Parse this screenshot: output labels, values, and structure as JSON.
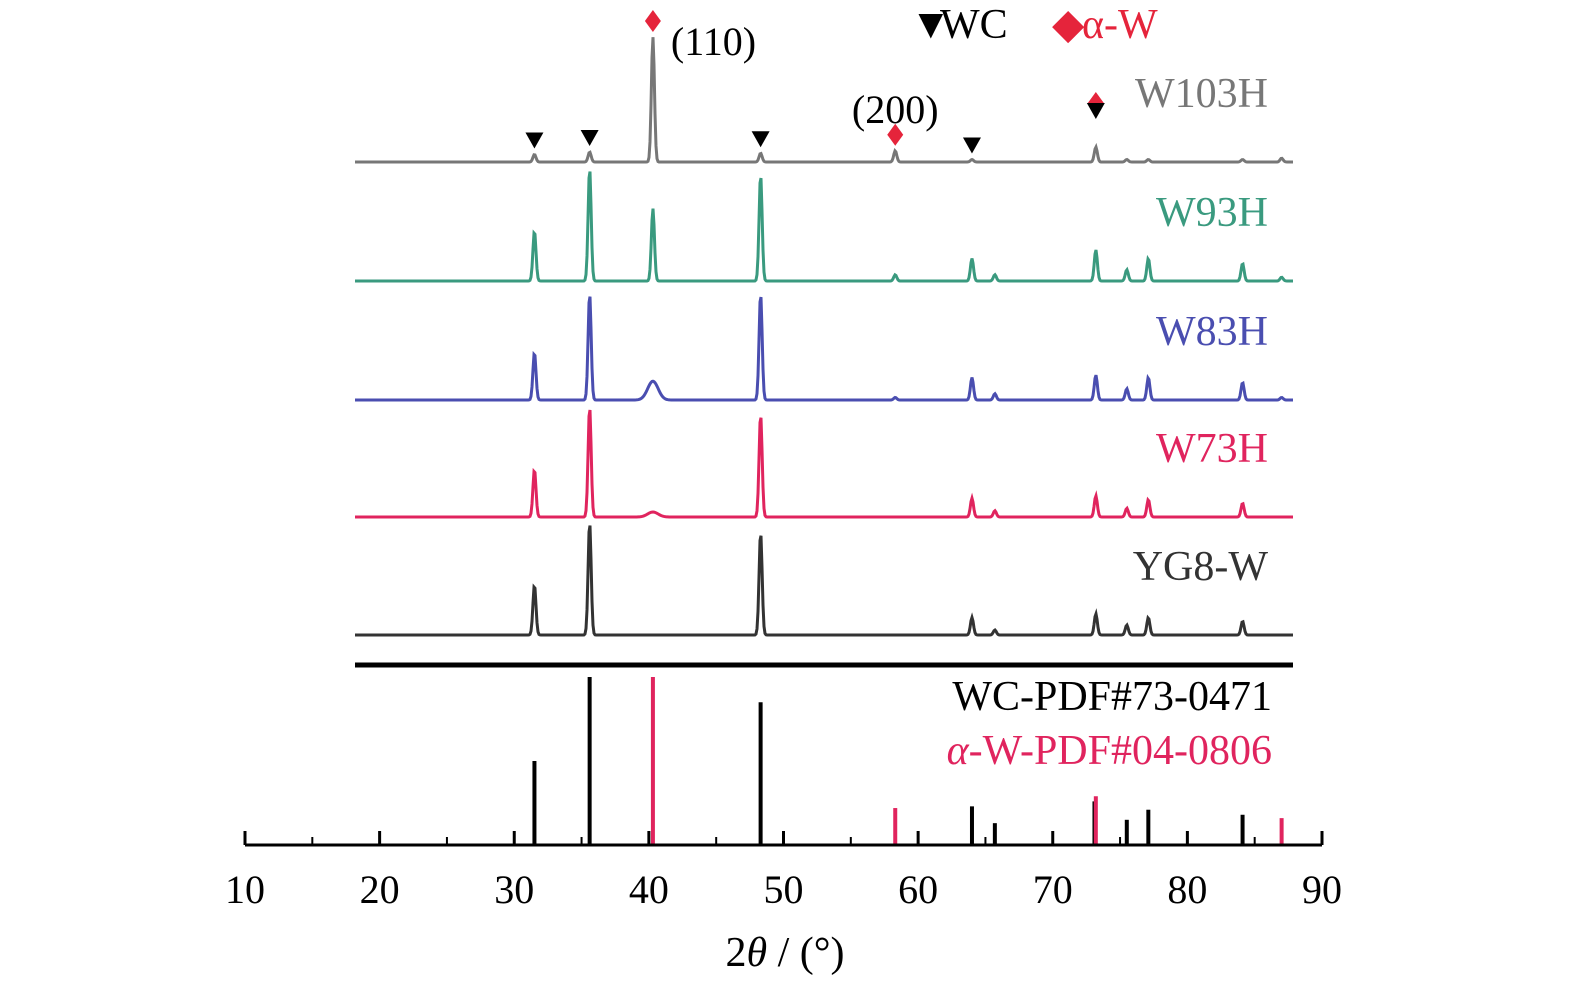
{
  "chart_data": {
    "type": "line",
    "title": "",
    "xlabel_parts": [
      "2",
      "θ",
      " / (°)"
    ],
    "ylabel": "",
    "xlim": [
      10,
      90
    ],
    "xticks": [
      10,
      20,
      30,
      40,
      50,
      60,
      70,
      80,
      90
    ],
    "grid": false,
    "legend": {
      "placement": "top-center",
      "items": [
        {
          "symbol": "▼",
          "label": "WC",
          "color": "#000000"
        },
        {
          "symbol": "◆",
          "label": "α-W",
          "color": "#e5243b"
        }
      ]
    },
    "series": [
      {
        "name": "W103H",
        "color": "#777777",
        "peaks": [
          {
            "x": 31.5,
            "rel": 0.06
          },
          {
            "x": 35.6,
            "rel": 0.08
          },
          {
            "x": 40.3,
            "rel": 1.0
          },
          {
            "x": 48.3,
            "rel": 0.07
          },
          {
            "x": 58.3,
            "rel": 0.09
          },
          {
            "x": 64.0,
            "rel": 0.02
          },
          {
            "x": 73.2,
            "rel": 0.12
          },
          {
            "x": 75.5,
            "rel": 0.02
          },
          {
            "x": 77.1,
            "rel": 0.02
          },
          {
            "x": 84.1,
            "rel": 0.02
          },
          {
            "x": 87.0,
            "rel": 0.03
          }
        ],
        "markers": [
          {
            "x": 31.5,
            "type": "WC"
          },
          {
            "x": 35.6,
            "type": "WC"
          },
          {
            "x": 40.3,
            "type": "W"
          },
          {
            "x": 48.3,
            "type": "WC"
          },
          {
            "x": 58.3,
            "type": "W"
          },
          {
            "x": 64.0,
            "type": "WC"
          },
          {
            "x": 73.2,
            "type": "W"
          },
          {
            "x": 73.2,
            "type": "WC"
          }
        ],
        "annotations": [
          {
            "text": "(110)",
            "x": 40.3
          },
          {
            "text": "(200)",
            "x": 58.3
          }
        ]
      },
      {
        "name": "W93H",
        "color": "#3a9a7f",
        "peaks": [
          {
            "x": 31.5,
            "rel": 0.4
          },
          {
            "x": 35.6,
            "rel": 0.9
          },
          {
            "x": 40.3,
            "rel": 0.58
          },
          {
            "x": 48.3,
            "rel": 0.85
          },
          {
            "x": 58.3,
            "rel": 0.05
          },
          {
            "x": 64.0,
            "rel": 0.18
          },
          {
            "x": 65.7,
            "rel": 0.05
          },
          {
            "x": 73.2,
            "rel": 0.25
          },
          {
            "x": 75.5,
            "rel": 0.09
          },
          {
            "x": 77.1,
            "rel": 0.18
          },
          {
            "x": 84.1,
            "rel": 0.14
          },
          {
            "x": 87.0,
            "rel": 0.03
          }
        ]
      },
      {
        "name": "W83H",
        "color": "#4a4eb0",
        "peaks": [
          {
            "x": 31.5,
            "rel": 0.38
          },
          {
            "x": 35.6,
            "rel": 0.85
          },
          {
            "x": 40.3,
            "rel": 0.15
          },
          {
            "x": 48.3,
            "rel": 0.85
          },
          {
            "x": 58.3,
            "rel": 0.02
          },
          {
            "x": 64.0,
            "rel": 0.18
          },
          {
            "x": 65.7,
            "rel": 0.05
          },
          {
            "x": 73.2,
            "rel": 0.2
          },
          {
            "x": 75.5,
            "rel": 0.09
          },
          {
            "x": 77.1,
            "rel": 0.18
          },
          {
            "x": 84.1,
            "rel": 0.14
          },
          {
            "x": 87.0,
            "rel": 0.02
          }
        ]
      },
      {
        "name": "W73H",
        "color": "#e0245e",
        "peaks": [
          {
            "x": 31.5,
            "rel": 0.38
          },
          {
            "x": 35.6,
            "rel": 0.88
          },
          {
            "x": 40.3,
            "rel": 0.04
          },
          {
            "x": 48.3,
            "rel": 0.82
          },
          {
            "x": 64.0,
            "rel": 0.15
          },
          {
            "x": 65.7,
            "rel": 0.05
          },
          {
            "x": 73.2,
            "rel": 0.17
          },
          {
            "x": 75.5,
            "rel": 0.07
          },
          {
            "x": 77.1,
            "rel": 0.14
          },
          {
            "x": 84.1,
            "rel": 0.11
          }
        ]
      },
      {
        "name": "YG8-W",
        "color": "#333333",
        "peaks": [
          {
            "x": 31.5,
            "rel": 0.4
          },
          {
            "x": 35.6,
            "rel": 0.9
          },
          {
            "x": 48.3,
            "rel": 0.82
          },
          {
            "x": 64.0,
            "rel": 0.14
          },
          {
            "x": 65.7,
            "rel": 0.04
          },
          {
            "x": 73.2,
            "rel": 0.17
          },
          {
            "x": 75.5,
            "rel": 0.08
          },
          {
            "x": 77.1,
            "rel": 0.14
          },
          {
            "x": 84.1,
            "rel": 0.11
          }
        ]
      }
    ],
    "reference_patterns": [
      {
        "name": "WC-PDF#73-0471",
        "color": "#000000",
        "lines": [
          {
            "x": 31.5,
            "intensity": 0.5
          },
          {
            "x": 35.6,
            "intensity": 1.0
          },
          {
            "x": 48.3,
            "intensity": 0.85
          },
          {
            "x": 64.0,
            "intensity": 0.23
          },
          {
            "x": 65.7,
            "intensity": 0.13
          },
          {
            "x": 73.1,
            "intensity": 0.26
          },
          {
            "x": 75.5,
            "intensity": 0.15
          },
          {
            "x": 77.1,
            "intensity": 0.21
          },
          {
            "x": 84.1,
            "intensity": 0.18
          }
        ]
      },
      {
        "name": "α-W-PDF#04-0806",
        "name_parts": [
          "α",
          "-W-PDF#04-0806"
        ],
        "color": "#e0245e",
        "lines": [
          {
            "x": 40.3,
            "intensity": 1.0
          },
          {
            "x": 58.3,
            "intensity": 0.22
          },
          {
            "x": 73.2,
            "intensity": 0.29
          },
          {
            "x": 87.0,
            "intensity": 0.16
          }
        ]
      }
    ]
  }
}
